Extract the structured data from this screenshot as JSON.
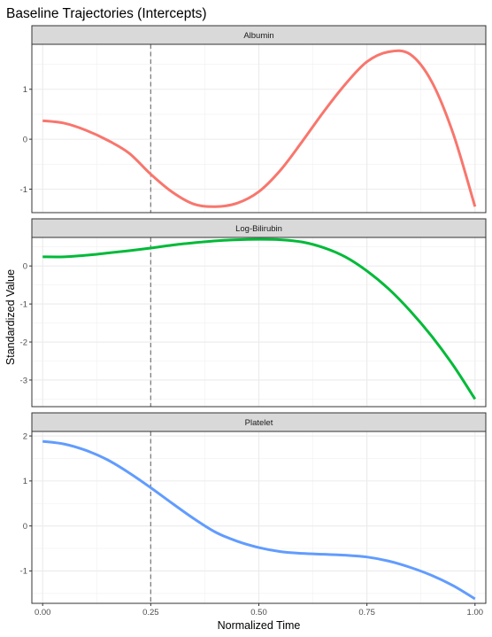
{
  "chart_data": {
    "type": "line",
    "title": "Baseline Trajectories (Intercepts)",
    "xlabel": "Normalized Time",
    "ylabel": "Standardized Value",
    "xlim": [
      -0.025,
      1.025
    ],
    "x_ticks": [
      "0.00",
      "0.25",
      "0.50",
      "0.75",
      "1.00"
    ],
    "x_tick_values": [
      0,
      0.25,
      0.5,
      0.75,
      1.0
    ],
    "reference_line": {
      "x": 0.25,
      "style": "dashed",
      "color": "#7f7f7f"
    },
    "grid": true,
    "facets": [
      {
        "name": "Albumin",
        "color": "#F8766D",
        "ylim": [
          -1.47,
          1.9
        ],
        "y_ticks": [
          "-1",
          "0",
          "1"
        ],
        "y_tick_values": [
          -1,
          0,
          1
        ],
        "x": [
          0,
          0.05,
          0.1,
          0.15,
          0.2,
          0.25,
          0.3,
          0.35,
          0.4,
          0.45,
          0.5,
          0.55,
          0.6,
          0.65,
          0.7,
          0.75,
          0.8,
          0.85,
          0.9,
          0.95,
          1.0
        ],
        "values": [
          0.37,
          0.32,
          0.18,
          -0.02,
          -0.28,
          -0.7,
          -1.06,
          -1.3,
          -1.35,
          -1.28,
          -1.05,
          -0.62,
          -0.05,
          0.55,
          1.1,
          1.55,
          1.75,
          1.7,
          1.15,
          0.1,
          -1.35
        ]
      },
      {
        "name": "Log-Bilirubin",
        "color": "#00BA38",
        "ylim": [
          -3.7,
          0.75
        ],
        "y_ticks": [
          "-3",
          "-2",
          "-1",
          "0"
        ],
        "y_tick_values": [
          -3,
          -2,
          -1,
          0
        ],
        "x": [
          0,
          0.05,
          0.1,
          0.15,
          0.2,
          0.25,
          0.3,
          0.35,
          0.4,
          0.45,
          0.5,
          0.55,
          0.6,
          0.65,
          0.7,
          0.75,
          0.8,
          0.85,
          0.9,
          0.95,
          1.0
        ],
        "values": [
          0.24,
          0.24,
          0.28,
          0.34,
          0.4,
          0.47,
          0.55,
          0.61,
          0.66,
          0.69,
          0.7,
          0.69,
          0.63,
          0.48,
          0.24,
          -0.13,
          -0.6,
          -1.18,
          -1.85,
          -2.62,
          -3.5
        ]
      },
      {
        "name": "Platelet",
        "color": "#619CFF",
        "ylim": [
          -1.72,
          2.1
        ],
        "y_ticks": [
          "-1",
          "0",
          "1",
          "2"
        ],
        "y_tick_values": [
          -1,
          0,
          1,
          2
        ],
        "x": [
          0,
          0.05,
          0.1,
          0.15,
          0.2,
          0.25,
          0.3,
          0.35,
          0.4,
          0.45,
          0.5,
          0.55,
          0.6,
          0.65,
          0.7,
          0.75,
          0.8,
          0.85,
          0.9,
          0.95,
          1.0
        ],
        "values": [
          1.88,
          1.82,
          1.68,
          1.47,
          1.18,
          0.85,
          0.5,
          0.16,
          -0.14,
          -0.34,
          -0.48,
          -0.57,
          -0.61,
          -0.63,
          -0.65,
          -0.69,
          -0.78,
          -0.92,
          -1.1,
          -1.33,
          -1.62
        ]
      }
    ]
  }
}
